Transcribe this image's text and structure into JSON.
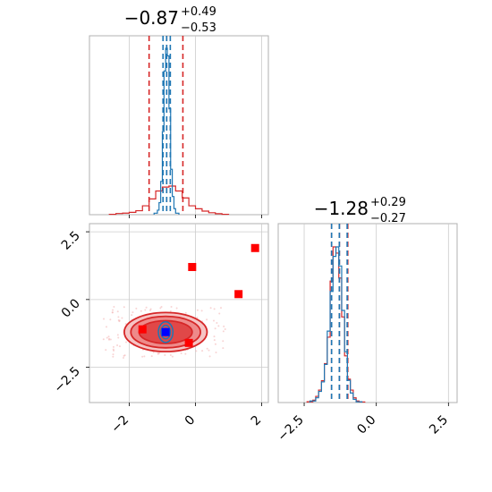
{
  "chart_data": [
    {
      "type": "histogram",
      "panel": "marginal-param1",
      "title": {
        "value": "−0.87",
        "upper": "+0.49",
        "lower": "−0.53"
      },
      "xlim": [
        -3.2,
        2.2
      ],
      "series": [
        {
          "color": "#d62728",
          "quantiles": [
            -1.4,
            -0.87,
            -0.38
          ],
          "bins": {
            "x": [
              -2.6,
              -2.4,
              -2.2,
              -2.0,
              -1.8,
              -1.6,
              -1.4,
              -1.2,
              -1.0,
              -0.8,
              -0.6,
              -0.4,
              -0.2,
              0.0,
              0.2,
              0.4,
              0.6,
              0.8,
              1.0
            ],
            "density": [
              0.2,
              0.6,
              0.8,
              1.2,
              2.0,
              4.5,
              8.0,
              12.0,
              14.0,
              14.5,
              12.0,
              8.5,
              4.5,
              3.0,
              1.8,
              1.0,
              0.5,
              0.2
            ]
          }
        },
        {
          "color": "#1f77b4",
          "quantiles": [
            -0.98,
            -0.87,
            -0.76
          ],
          "bins": {
            "x": [
              -1.25,
              -1.15,
              -1.1,
              -1.05,
              -1.0,
              -0.95,
              -0.9,
              -0.85,
              -0.8,
              -0.75,
              -0.7,
              -0.65,
              -0.6,
              -0.5
            ],
            "density": [
              1,
              3,
              8,
              22,
              55,
              95,
              110,
              105,
              70,
              30,
              12,
              4,
              1
            ]
          }
        }
      ]
    },
    {
      "type": "histogram",
      "panel": "marginal-param2",
      "title": {
        "value": "−1.28",
        "upper": "+0.29",
        "lower": "−0.27"
      },
      "xlim": [
        -3.4,
        2.8
      ],
      "xticks": [
        "−2.5",
        "0.0",
        "2.5"
      ],
      "series": [
        {
          "color": "#d62728",
          "quantiles": [
            -1.55,
            -1.28,
            -0.99
          ],
          "bins": {
            "x": [
              -2.4,
              -2.2,
              -2.1,
              -2.0,
              -1.9,
              -1.8,
              -1.7,
              -1.6,
              -1.5,
              -1.4,
              -1.3,
              -1.2,
              -1.1,
              -1.0,
              -0.9,
              -0.8,
              -0.7,
              -0.6,
              -0.4
            ],
            "density": [
              0.5,
              1.5,
              4,
              8,
              14,
              25,
              42,
              78,
              100,
              96,
              80,
              55,
              30,
              15,
              8,
              3,
              1,
              0.4
            ]
          }
        },
        {
          "color": "#1f77b4",
          "quantiles": [
            -1.55,
            -1.28,
            -1.01
          ],
          "bins": {
            "x": [
              -2.3,
              -2.1,
              -2.0,
              -1.9,
              -1.8,
              -1.7,
              -1.6,
              -1.5,
              -1.4,
              -1.3,
              -1.2,
              -1.1,
              -1.0,
              -0.9,
              -0.8,
              -0.7,
              -0.5
            ],
            "density": [
              1,
              3,
              7,
              13,
              24,
              45,
              70,
              92,
              98,
              86,
              58,
              32,
              14,
              6,
              2,
              0.5
            ]
          }
        }
      ]
    },
    {
      "type": "scatter",
      "panel": "joint",
      "xlim": [
        -3.2,
        2.2
      ],
      "ylim": [
        -3.8,
        2.8
      ],
      "xticks": [
        "−2",
        "0",
        "2"
      ],
      "yticks": [
        "2.5",
        "0.0",
        "−2.5"
      ],
      "contours": [
        {
          "color": "#d62728",
          "center": [
            -0.9,
            -1.2
          ],
          "radii": [
            [
              1.25,
              0.72
            ],
            [
              1.05,
              0.58
            ],
            [
              0.8,
              0.42
            ]
          ],
          "fills": [
            "#f6c4c4",
            "#ee8a8a",
            "#e04848"
          ]
        },
        {
          "color": "#1f77b4",
          "center": [
            -0.9,
            -1.2
          ],
          "radii": [
            [
              0.22,
              0.38
            ],
            [
              0.14,
              0.25
            ],
            [
              0.08,
              0.14
            ]
          ]
        }
      ],
      "red_points": [
        [
          -1.6,
          -1.1
        ],
        [
          -0.1,
          1.2
        ],
        [
          1.3,
          0.2
        ],
        [
          1.8,
          1.9
        ],
        [
          -0.2,
          -1.6
        ]
      ],
      "blue_point": [
        -0.9,
        -1.2
      ]
    }
  ]
}
